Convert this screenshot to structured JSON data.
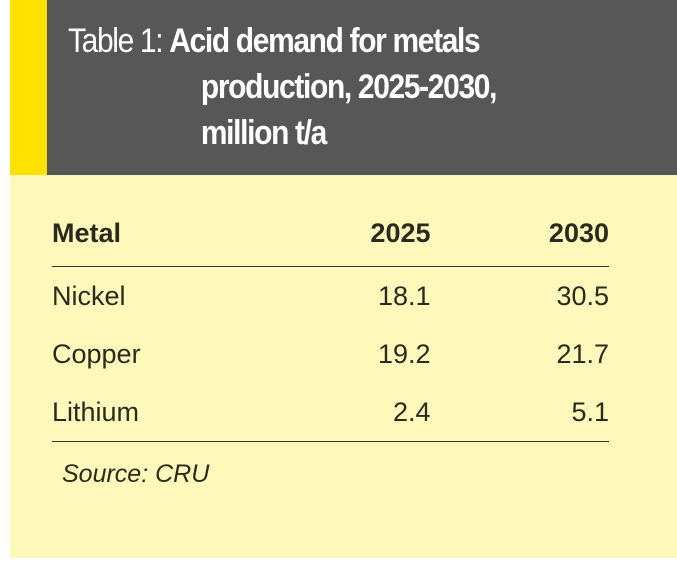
{
  "header": {
    "label": "Table 1:",
    "title_line1": "Acid demand for metals",
    "title_line2": "production, 2025-2030,",
    "title_line3": "million t/a"
  },
  "table": {
    "columns": [
      "Metal",
      "2025",
      "2030"
    ],
    "rows": [
      [
        "Nickel",
        "18.1",
        "30.5"
      ],
      [
        "Copper",
        "19.2",
        "21.7"
      ],
      [
        "Lithium",
        "2.4",
        "5.1"
      ]
    ]
  },
  "source": "Source: CRU",
  "colors": {
    "accent": "#ffe200",
    "header_bg": "#585757",
    "body_bg": "#fff8bb"
  }
}
